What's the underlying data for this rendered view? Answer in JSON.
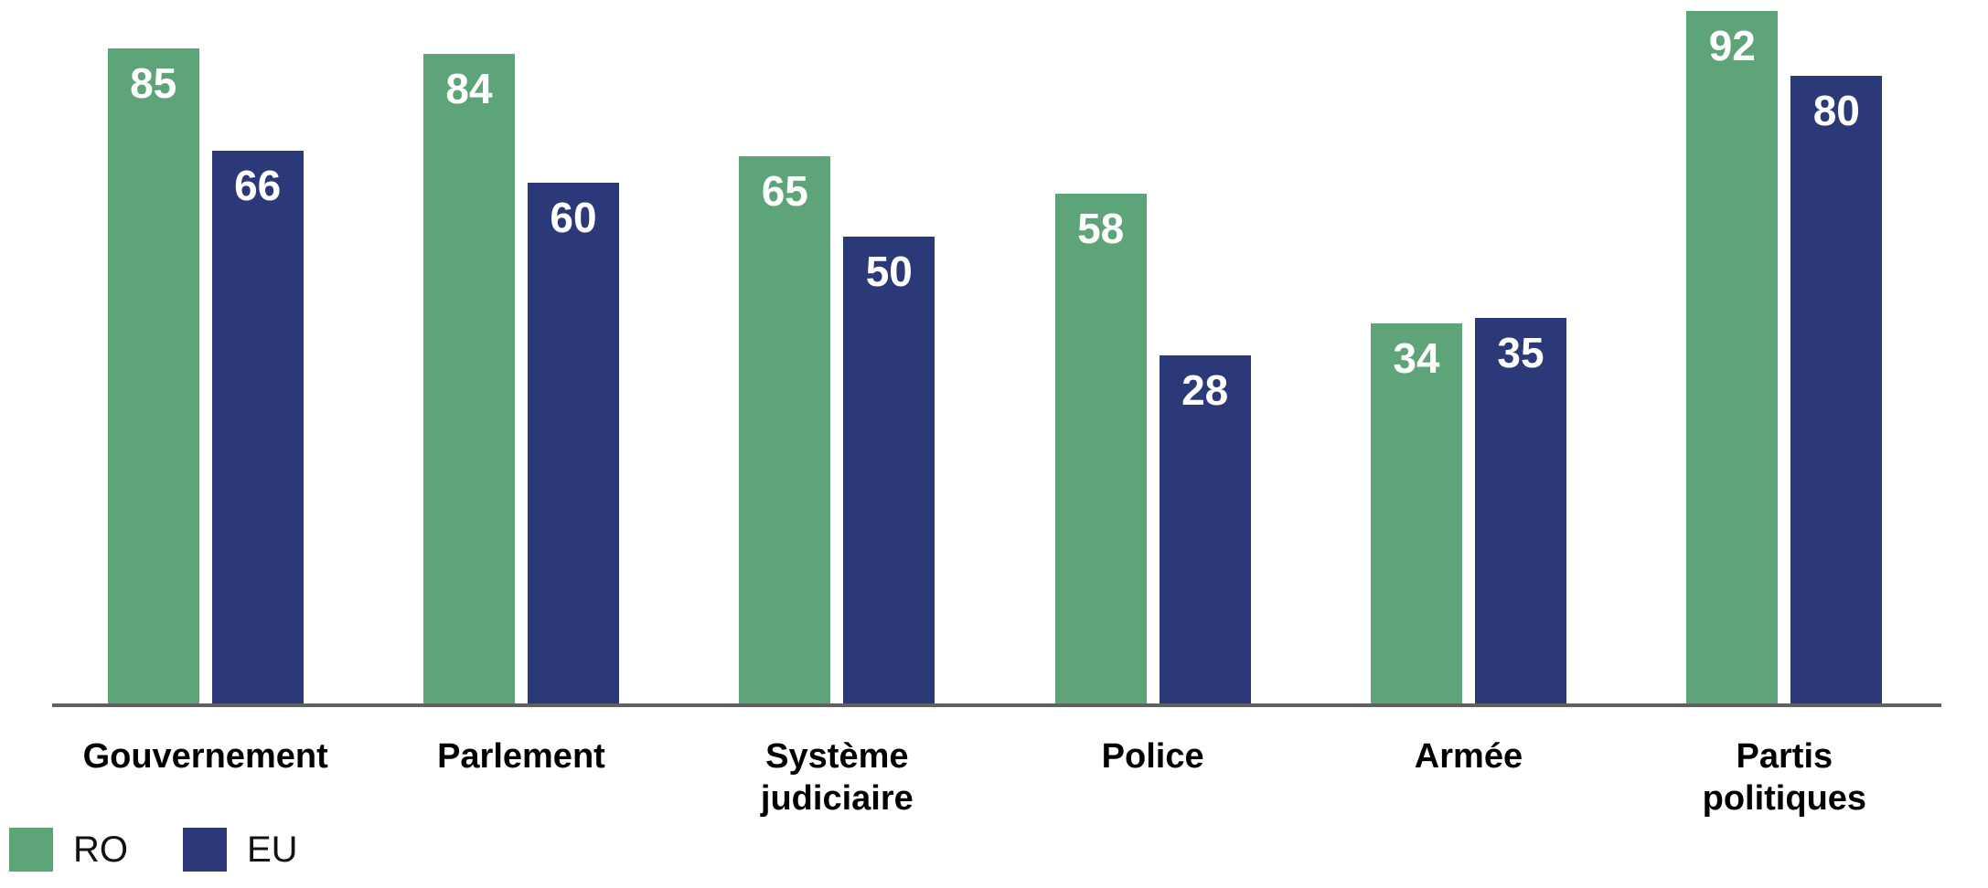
{
  "chart_data": {
    "type": "bar",
    "categories": [
      "Gouvernement",
      "Parlement",
      "Système judiciaire",
      "Police",
      "Armée",
      "Partis politiques"
    ],
    "categories_display": [
      "Gouvernement",
      "Parlement",
      "Système\njudiciaire",
      "Police",
      "Armée",
      "Partis\npolitiques"
    ],
    "series": [
      {
        "name": "RO",
        "color": "#5DA478",
        "values": [
          85,
          84,
          65,
          58,
          34,
          92
        ]
      },
      {
        "name": "EU",
        "color": "#2B3978",
        "values": [
          66,
          60,
          50,
          28,
          35,
          80
        ]
      }
    ],
    "title": "",
    "xlabel": "",
    "ylabel": "",
    "ylim": [
      -37,
      94
    ],
    "grid": false,
    "legend_position": "bottom-left",
    "value_labels": "inside-top-centered",
    "value_label_color": "#ffffff",
    "category_label_color": "#000000",
    "axis_line_color": "#606060",
    "background": "#ffffff"
  }
}
